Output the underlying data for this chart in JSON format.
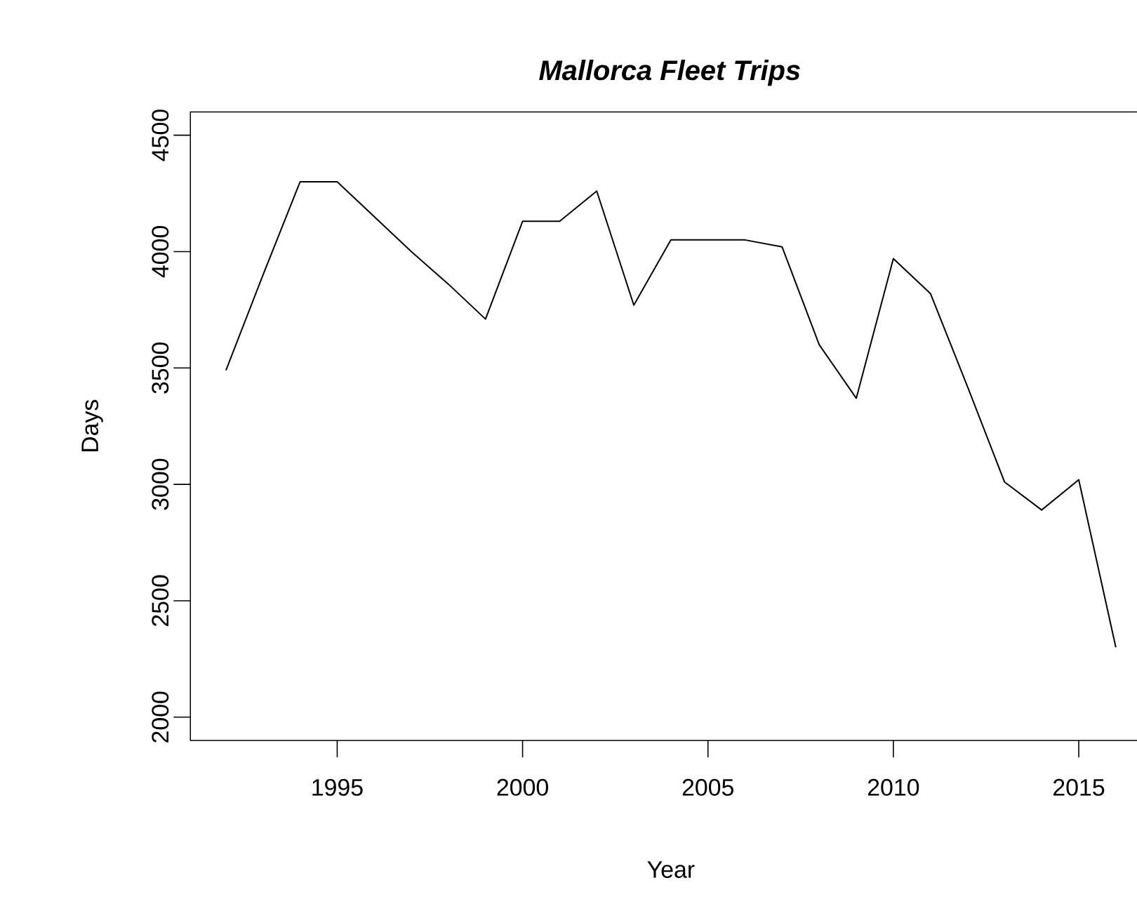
{
  "chart_data": {
    "type": "line",
    "title": "Mallorca Fleet Trips",
    "xlabel": "Year",
    "ylabel": "Days",
    "x": [
      1992,
      1993,
      1994,
      1995,
      1996,
      1997,
      1998,
      1999,
      2000,
      2001,
      2002,
      2003,
      2004,
      2005,
      2006,
      2007,
      2008,
      2009,
      2010,
      2011,
      2012,
      2013,
      2014,
      2015,
      2016
    ],
    "series": [
      {
        "color": "#000000",
        "values": [
          3490,
          3900,
          4300,
          4300,
          4150,
          4000,
          3860,
          3710,
          4130,
          4130,
          4260,
          3770,
          4050,
          4050,
          4050,
          4020,
          3600,
          3370,
          3970,
          3820,
          3420,
          3010,
          2890,
          3020,
          2300
        ]
      }
    ],
    "xlim": [
      1991.04,
      2016.96
    ],
    "ylim": [
      1900,
      4600
    ],
    "xticks": [
      1995,
      2000,
      2005,
      2010,
      2015
    ],
    "yticks": [
      2000,
      2500,
      3000,
      3500,
      4000,
      4500
    ],
    "line_style": "solid",
    "grid": false
  }
}
